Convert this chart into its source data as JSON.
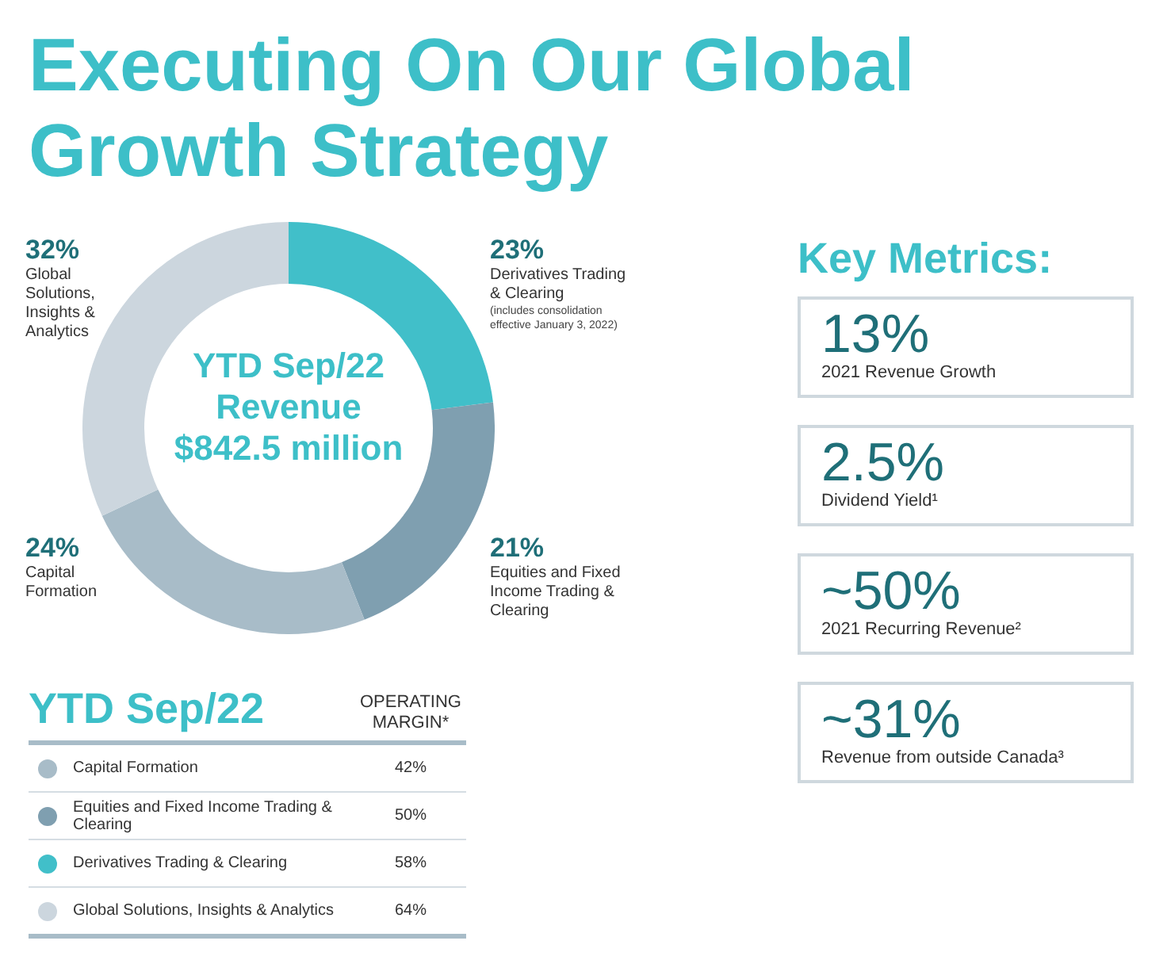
{
  "chart_data": [
    {
      "type": "donut",
      "title": "Executing On Our Global Growth Strategy",
      "categories": [
        "Derivatives Trading & Clearing",
        "Equities and Fixed Income Trading & Clearing",
        "Capital Formation",
        "Global Solutions, Insights & Analytics"
      ],
      "values": [
        23,
        21,
        24,
        32
      ],
      "colors": [
        "#41bfc9",
        "#7f9fb0",
        "#a8bcc8",
        "#ccd6de"
      ],
      "value_labels": [
        "23%",
        "21%",
        "24%",
        "32%"
      ],
      "annotations": [
        "YTD Sep/22 Revenue $842.5 million",
        "(includes consolidation effective January 3, 2022)"
      ]
    },
    {
      "type": "other",
      "title": "YTD Sep/22",
      "subtitle": "OPERATING MARGIN*",
      "categories": [
        "Capital Formation",
        "Equities and Fixed Income Trading & Clearing",
        "Derivatives Trading & Clearing",
        "Global Solutions, Insights & Analytics"
      ],
      "colors": [
        "#a8bcc8",
        "#7f9fb0",
        "#41bfc9",
        "#ccd6de"
      ],
      "value_labels": [
        "42%",
        "50%",
        "58%",
        "64%"
      ]
    },
    {
      "type": "other",
      "title": "Key Metrics:",
      "annotations": [
        "13%",
        "2021 Revenue Growth",
        "2.5%",
        "Dividend Yield¹",
        "~50%",
        "2021 Recurring Revenue²",
        "~31%",
        "Revenue from outside Canada³"
      ]
    }
  ]
}
